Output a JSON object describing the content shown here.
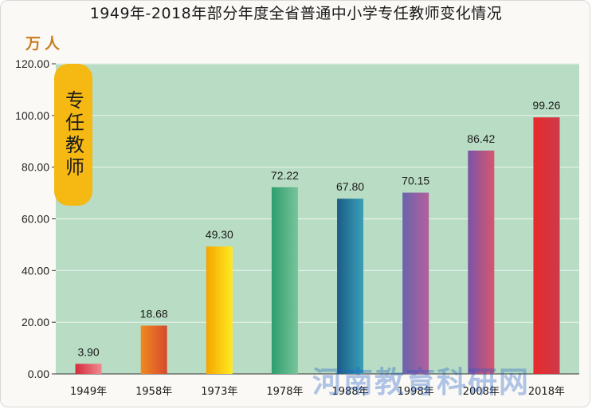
{
  "title": "1949年-2018年部分年度全省普通中小学专任教师变化情况",
  "unit": "万人",
  "series_tag": "专任教师",
  "watermark": "河南教育科研网",
  "colors": {
    "plot_background": "#b8dcc4",
    "grid_line": "#e8f3ec",
    "title_text": "#1a1a1a",
    "unit_text": "#c77d1e",
    "tag_fill": "#f6b812"
  },
  "chart_data": {
    "type": "bar",
    "title": "1949年-2018年部分年度全省普通中小学专任教师变化情况",
    "xlabel": "",
    "ylabel": "万人",
    "ylim": [
      0,
      120
    ],
    "yticks": [
      0,
      20,
      40,
      60,
      80,
      100,
      120
    ],
    "ytick_labels": [
      "0.00",
      "20.00",
      "40.00",
      "60.00",
      "80.00",
      "100.00",
      "120.00"
    ],
    "grid": true,
    "categories": [
      "1949年",
      "1958年",
      "1973年",
      "1978年",
      "1988年",
      "1998年",
      "2008年",
      "2018年"
    ],
    "values": [
      3.9,
      18.68,
      49.3,
      72.22,
      67.8,
      70.15,
      86.42,
      99.26
    ],
    "value_labels": [
      "3.90",
      "18.68",
      "49.30",
      "72.22",
      "67.80",
      "70.15",
      "86.42",
      "99.26"
    ],
    "bar_colors": [
      [
        "#d42a3b",
        "#f08a90"
      ],
      [
        "#ef8a22",
        "#d64a2c"
      ],
      [
        "#f5a500",
        "#ffea22"
      ],
      [
        "#2e9e6f",
        "#78c49a"
      ],
      [
        "#1b5b86",
        "#3aa0b8"
      ],
      [
        "#6a64ad",
        "#b45f9c"
      ],
      [
        "#7b54a8",
        "#d8566e"
      ],
      [
        "#e82a2a",
        "#cc3a4a"
      ]
    ]
  }
}
